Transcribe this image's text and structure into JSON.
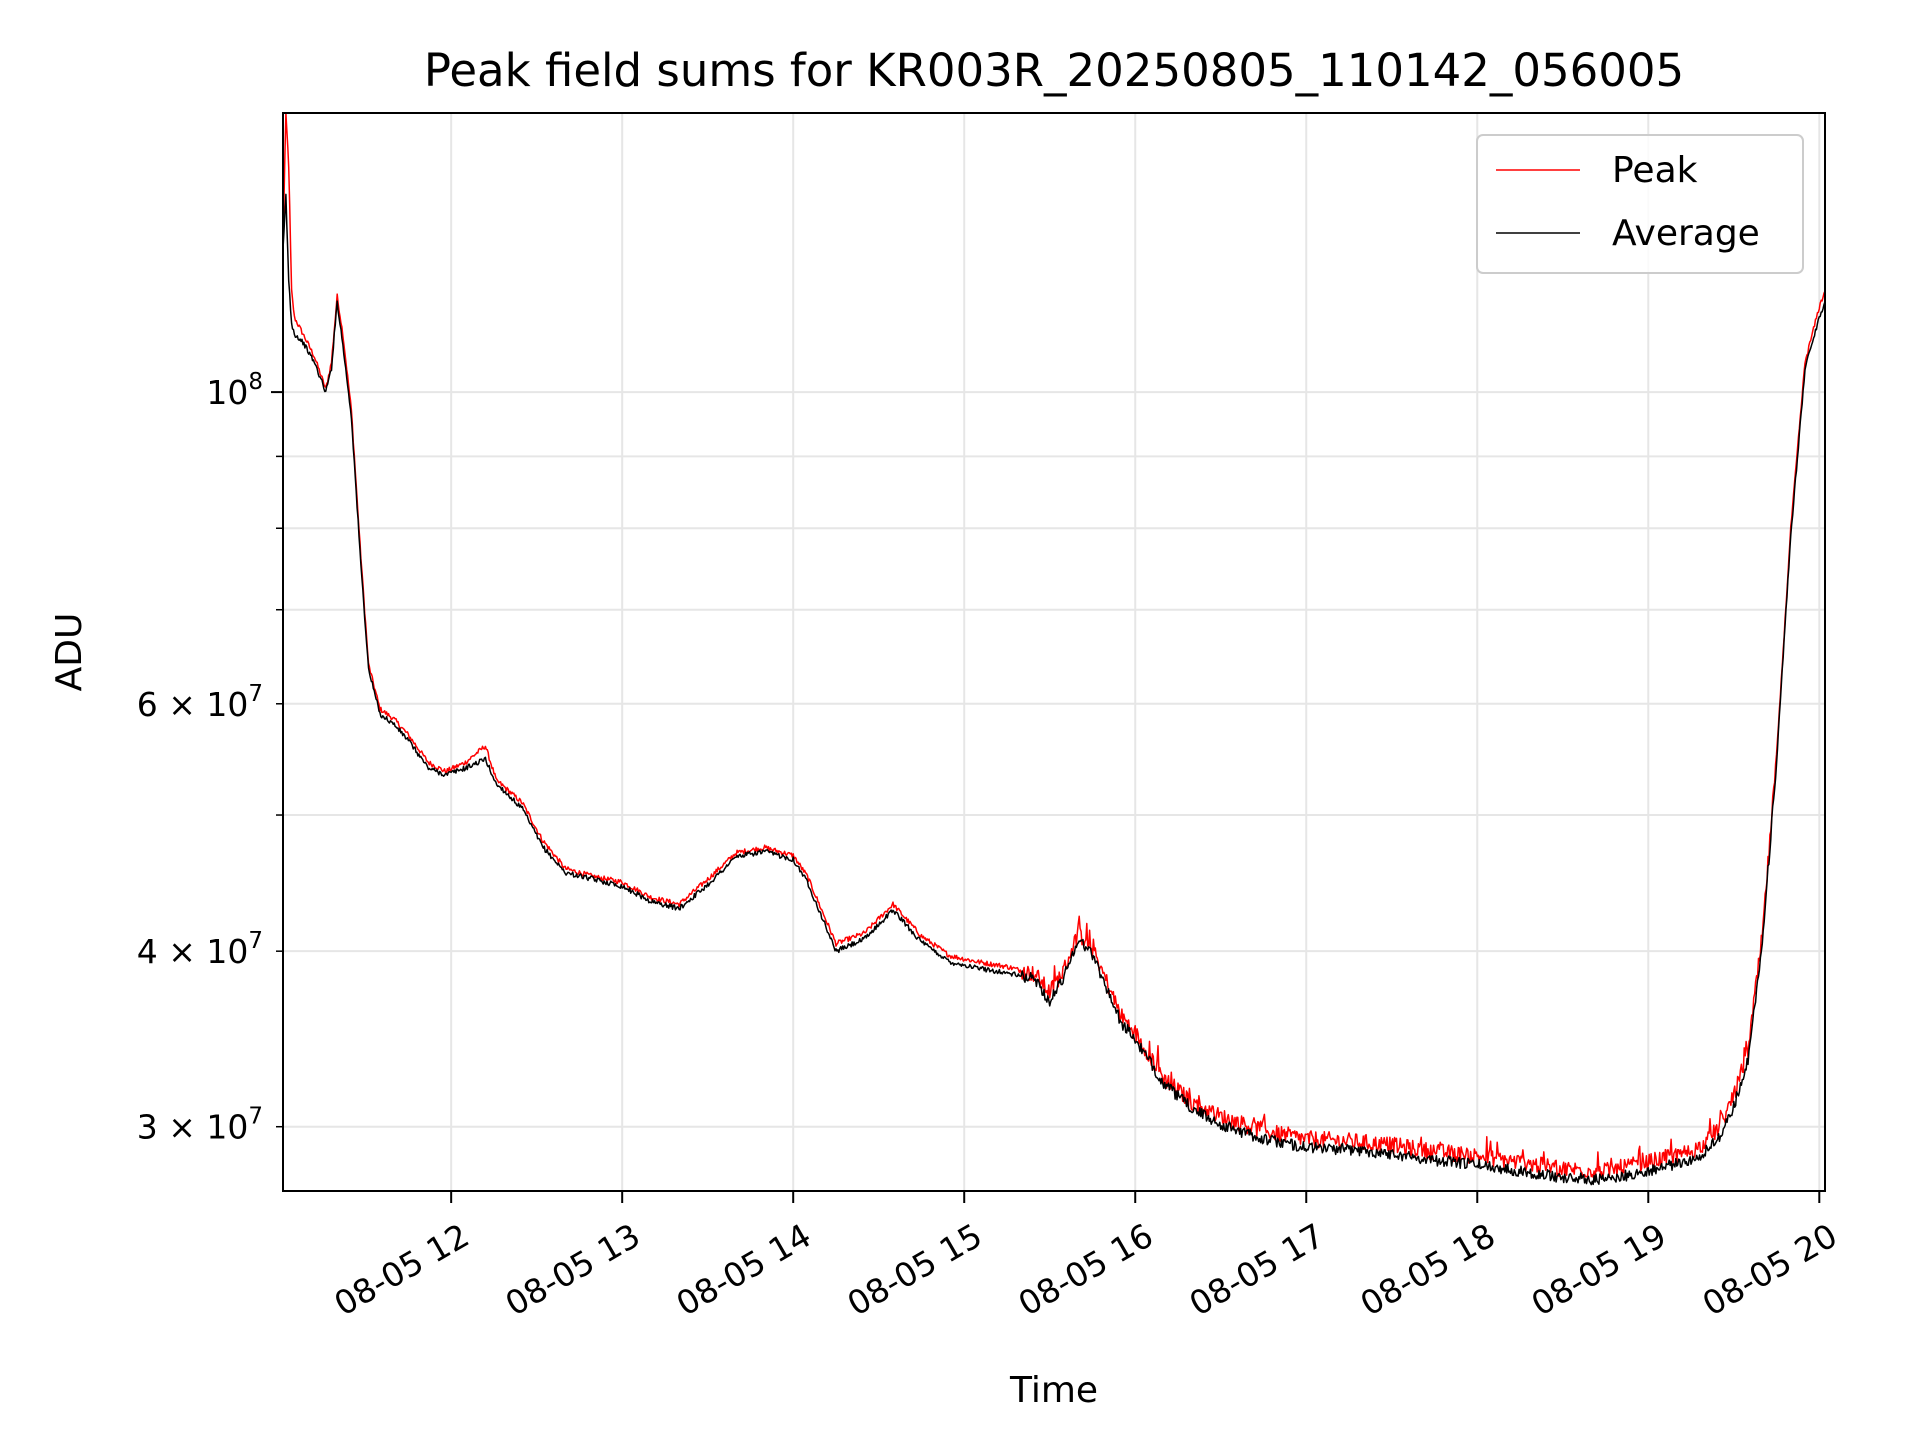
{
  "chart_data": {
    "type": "line",
    "title": "Peak field sums for KR003R_20250805_110142_056005",
    "xlabel": "Time",
    "ylabel": "ADU",
    "y_scale": "log",
    "ylim": [
      27000000,
      158000000
    ],
    "xlim": [
      "2025-08-05 11:01",
      "2025-08-05 20:02"
    ],
    "grid": true,
    "legend_position": "top-right",
    "x_ticks": [
      {
        "value": "2025-08-05 12:00",
        "label": "08-05 12"
      },
      {
        "value": "2025-08-05 13:00",
        "label": "08-05 13"
      },
      {
        "value": "2025-08-05 14:00",
        "label": "08-05 14"
      },
      {
        "value": "2025-08-05 15:00",
        "label": "08-05 15"
      },
      {
        "value": "2025-08-05 16:00",
        "label": "08-05 16"
      },
      {
        "value": "2025-08-05 17:00",
        "label": "08-05 17"
      },
      {
        "value": "2025-08-05 18:00",
        "label": "08-05 18"
      },
      {
        "value": "2025-08-05 19:00",
        "label": "08-05 19"
      },
      {
        "value": "2025-08-05 20:00",
        "label": "08-05 20"
      }
    ],
    "y_ticks_major": [
      {
        "value": 100000000,
        "base": "10",
        "exp": "8"
      }
    ],
    "y_ticks_minor": [
      {
        "value": 30000000,
        "base": "3 × 10",
        "exp": "7"
      },
      {
        "value": 40000000,
        "base": "4 × 10",
        "exp": "7"
      },
      {
        "value": 50000000
      },
      {
        "value": 60000000,
        "base": "6 × 10",
        "exp": "7"
      },
      {
        "value": 70000000
      },
      {
        "value": 80000000
      },
      {
        "value": 90000000
      }
    ],
    "x": [
      "2025-08-05 11:01",
      "2025-08-05 11:02",
      "2025-08-05 11:03",
      "2025-08-05 11:04",
      "2025-08-05 11:05",
      "2025-08-05 11:08",
      "2025-08-05 11:12",
      "2025-08-05 11:16",
      "2025-08-05 11:18",
      "2025-08-05 11:20",
      "2025-08-05 11:22",
      "2025-08-05 11:25",
      "2025-08-05 11:28",
      "2025-08-05 11:31",
      "2025-08-05 11:35",
      "2025-08-05 11:40",
      "2025-08-05 11:45",
      "2025-08-05 11:52",
      "2025-08-05 11:58",
      "2025-08-05 12:05",
      "2025-08-05 12:12",
      "2025-08-05 12:16",
      "2025-08-05 12:17",
      "2025-08-05 12:25",
      "2025-08-05 12:32",
      "2025-08-05 12:40",
      "2025-08-05 12:50",
      "2025-08-05 13:00",
      "2025-08-05 13:10",
      "2025-08-05 13:20",
      "2025-08-05 13:30",
      "2025-08-05 13:40",
      "2025-08-05 13:50",
      "2025-08-05 14:00",
      "2025-08-05 14:05",
      "2025-08-05 14:15",
      "2025-08-05 14:25",
      "2025-08-05 14:35",
      "2025-08-05 14:45",
      "2025-08-05 14:55",
      "2025-08-05 15:05",
      "2025-08-05 15:15",
      "2025-08-05 15:25",
      "2025-08-05 15:30",
      "2025-08-05 15:35",
      "2025-08-05 15:40",
      "2025-08-05 15:45",
      "2025-08-05 15:55",
      "2025-08-05 16:00",
      "2025-08-05 16:10",
      "2025-08-05 16:20",
      "2025-08-05 16:30",
      "2025-08-05 16:45",
      "2025-08-05 17:00",
      "2025-08-05 17:15",
      "2025-08-05 17:30",
      "2025-08-05 17:45",
      "2025-08-05 18:00",
      "2025-08-05 18:15",
      "2025-08-05 18:30",
      "2025-08-05 18:45",
      "2025-08-05 19:00",
      "2025-08-05 19:15",
      "2025-08-05 19:20",
      "2025-08-05 19:25",
      "2025-08-05 19:30",
      "2025-08-05 19:35",
      "2025-08-05 19:40",
      "2025-08-05 19:45",
      "2025-08-05 19:50",
      "2025-08-05 19:55",
      "2025-08-05 20:00",
      "2025-08-05 20:02"
    ],
    "series": [
      {
        "name": "Peak",
        "color": "#ff0000",
        "values": [
          128000000,
          158000000,
          145000000,
          118000000,
          113000000,
          110000000,
          106000000,
          100500000,
          105000000,
          117000000,
          110000000,
          97000000,
          78000000,
          64000000,
          59500000,
          58500000,
          57000000,
          54500000,
          53700000,
          54500000,
          56000000,
          52800000,
          52700000,
          51000000,
          48000000,
          45800000,
          45200000,
          44800000,
          43700000,
          43200000,
          45000000,
          47000000,
          47400000,
          46800000,
          45200000,
          40500000,
          41200000,
          43200000,
          41000000,
          39700000,
          39300000,
          39000000,
          38500000,
          37400000,
          38800000,
          41200000,
          40200000,
          36000000,
          35000000,
          32500000,
          31200000,
          30500000,
          29800000,
          29400000,
          29300000,
          29100000,
          28800000,
          28600000,
          28300000,
          28000000,
          27900000,
          28300000,
          28800000,
          29200000,
          30000000,
          31500000,
          34000000,
          41000000,
          55000000,
          80000000,
          105000000,
          115000000,
          118000000
        ]
      },
      {
        "name": "Average",
        "color": "#000000",
        "values": [
          126000000,
          138000000,
          120000000,
          112000000,
          110000000,
          108500000,
          105000000,
          100000000,
          104000000,
          116000000,
          108000000,
          96000000,
          77000000,
          63500000,
          59000000,
          58000000,
          56500000,
          54000000,
          53400000,
          54000000,
          54800000,
          52500000,
          52400000,
          50500000,
          47500000,
          45500000,
          45000000,
          44500000,
          43400000,
          42900000,
          44600000,
          46700000,
          47100000,
          46500000,
          44800000,
          40000000,
          40800000,
          42800000,
          40600000,
          39300000,
          38900000,
          38600000,
          38200000,
          36800000,
          38400000,
          40800000,
          39800000,
          35600000,
          34600000,
          32200000,
          30900000,
          30100000,
          29400000,
          29000000,
          28900000,
          28700000,
          28400000,
          28200000,
          27900000,
          27600000,
          27500000,
          27900000,
          28400000,
          28800000,
          29500000,
          31000000,
          33500000,
          40500000,
          54500000,
          79000000,
          104000000,
          113000000,
          116000000
        ]
      }
    ]
  }
}
